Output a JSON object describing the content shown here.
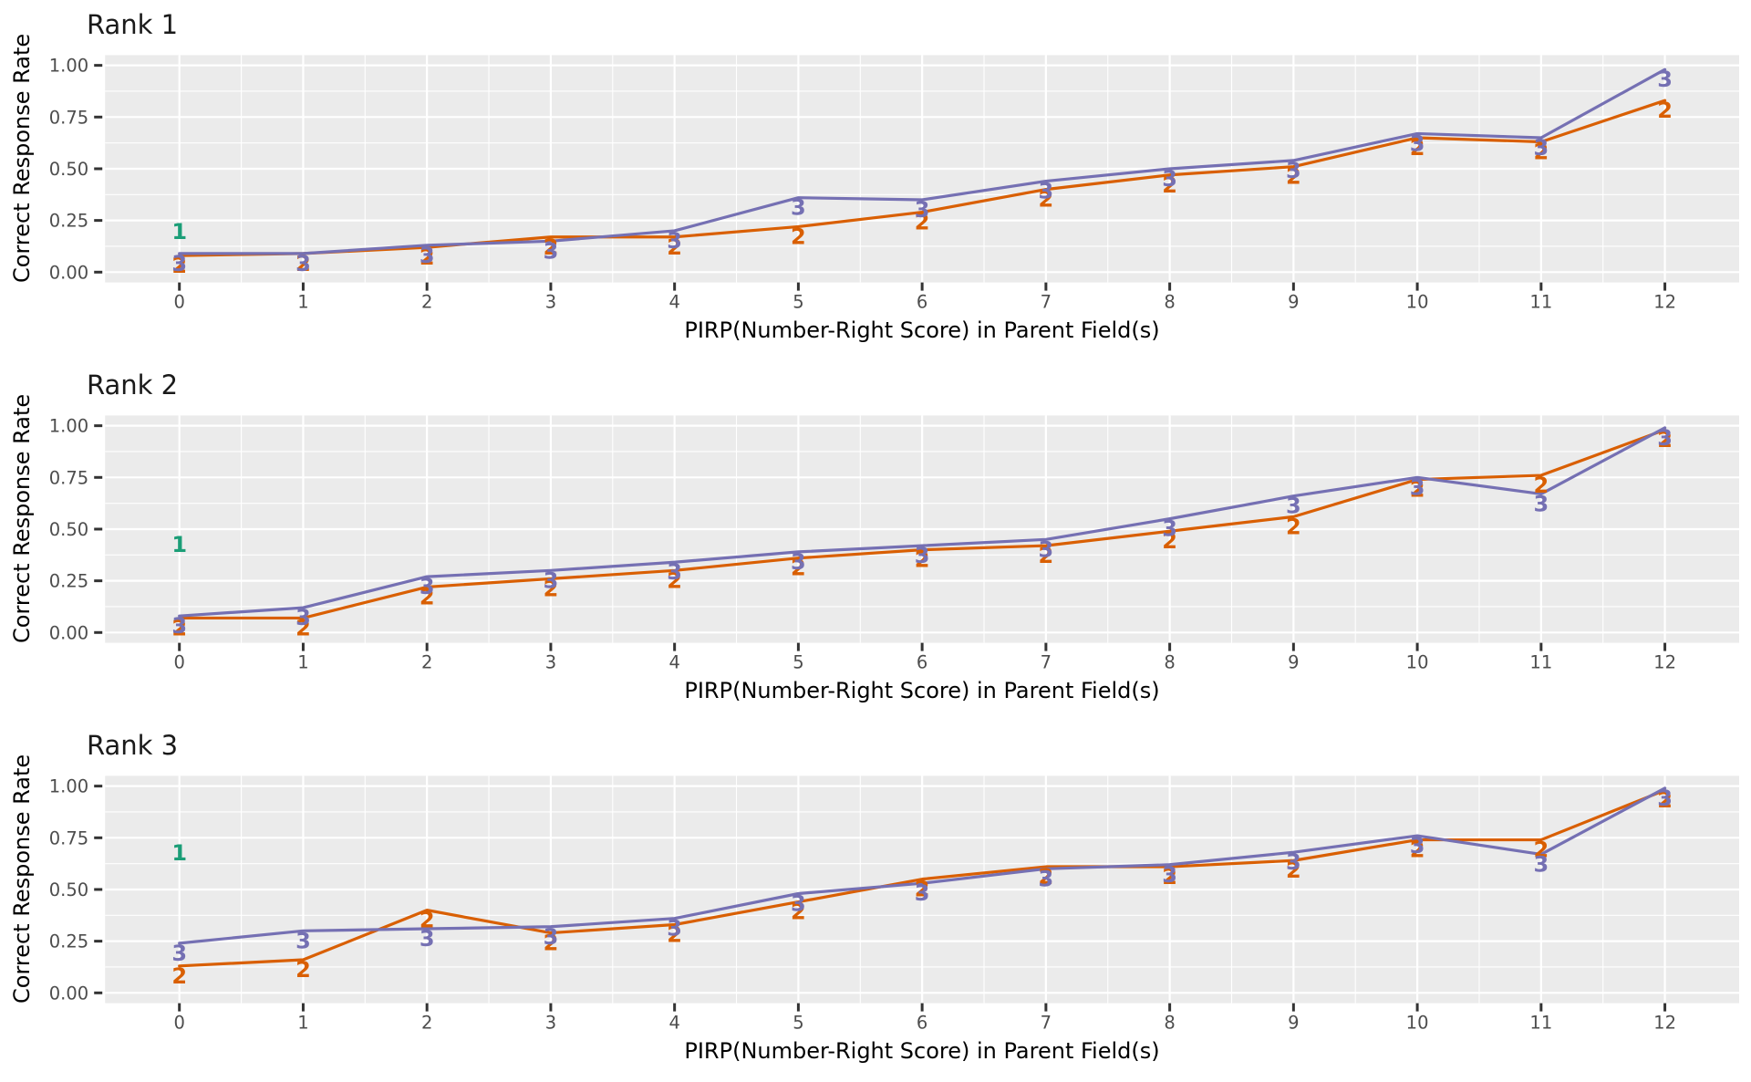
{
  "figure": {
    "background": "#ffffff",
    "panel_background": "#ebebeb",
    "grid_color": "#ffffff",
    "tick_mark_color": "#333333",
    "tick_label_color": "#4d4d4d",
    "panel_title_color": "#1a1a1a",
    "axis_title_color": "#000000"
  },
  "series_colors": {
    "1": "#1b9e77",
    "2": "#d95f02",
    "3": "#7570b3"
  },
  "axes": {
    "x_title": "PIRP(Number-Right Score) in Parent Field(s)",
    "y_title": "Correct Response Rate",
    "x_tick_labels": [
      "0",
      "1",
      "2",
      "3",
      "4",
      "5",
      "6",
      "7",
      "8",
      "9",
      "10",
      "11",
      "12"
    ],
    "y_tick_labels": [
      "1.00",
      "0.75",
      "0.50",
      "0.25",
      "0.00"
    ],
    "y_tick_values": [
      1.0,
      0.75,
      0.5,
      0.25,
      0.0
    ]
  },
  "chart_data": [
    {
      "type": "line",
      "title": "Rank 1",
      "xlabel": "PIRP(Number-Right Score) in Parent Field(s)",
      "ylabel": "Correct Response Rate",
      "xlim": [
        0,
        12
      ],
      "ylim": [
        0.0,
        1.0
      ],
      "grid": "on",
      "x": [
        0,
        1,
        2,
        3,
        4,
        5,
        6,
        7,
        8,
        9,
        10,
        11,
        12
      ],
      "series": [
        {
          "name": "2",
          "color": "#d95f02",
          "values": [
            0.08,
            0.09,
            0.12,
            0.17,
            0.17,
            0.22,
            0.29,
            0.4,
            0.47,
            0.51,
            0.65,
            0.63,
            0.83
          ]
        },
        {
          "name": "3",
          "color": "#7570b3",
          "values": [
            0.09,
            0.09,
            0.13,
            0.15,
            0.2,
            0.36,
            0.35,
            0.44,
            0.5,
            0.54,
            0.67,
            0.65,
            0.98
          ]
        },
        {
          "name": "1",
          "color": "#1b9e77",
          "label_only": true,
          "x": [
            0
          ],
          "values": [
            0.2
          ]
        }
      ]
    },
    {
      "type": "line",
      "title": "Rank 2",
      "xlabel": "PIRP(Number-Right Score) in Parent Field(s)",
      "ylabel": "Correct Response Rate",
      "xlim": [
        0,
        12
      ],
      "ylim": [
        0.0,
        1.0
      ],
      "grid": "on",
      "x": [
        0,
        1,
        2,
        3,
        4,
        5,
        6,
        7,
        8,
        9,
        10,
        11,
        12
      ],
      "series": [
        {
          "name": "2",
          "color": "#d95f02",
          "values": [
            0.07,
            0.07,
            0.22,
            0.26,
            0.3,
            0.36,
            0.4,
            0.42,
            0.49,
            0.56,
            0.74,
            0.76,
            0.98
          ]
        },
        {
          "name": "3",
          "color": "#7570b3",
          "values": [
            0.08,
            0.12,
            0.27,
            0.3,
            0.34,
            0.39,
            0.42,
            0.45,
            0.55,
            0.66,
            0.75,
            0.67,
            0.99
          ]
        },
        {
          "name": "1",
          "color": "#1b9e77",
          "label_only": true,
          "x": [
            0
          ],
          "values": [
            0.43
          ]
        }
      ]
    },
    {
      "type": "line",
      "title": "Rank 3",
      "xlabel": "PIRP(Number-Right Score) in Parent Field(s)",
      "ylabel": "Correct Response Rate",
      "xlim": [
        0,
        12
      ],
      "ylim": [
        0.0,
        1.0
      ],
      "grid": "on",
      "x": [
        0,
        1,
        2,
        3,
        4,
        5,
        6,
        7,
        8,
        9,
        10,
        11,
        12
      ],
      "series": [
        {
          "name": "2",
          "color": "#d95f02",
          "values": [
            0.13,
            0.16,
            0.4,
            0.29,
            0.33,
            0.44,
            0.55,
            0.61,
            0.61,
            0.64,
            0.74,
            0.74,
            0.98
          ]
        },
        {
          "name": "3",
          "color": "#7570b3",
          "values": [
            0.24,
            0.3,
            0.31,
            0.32,
            0.36,
            0.48,
            0.53,
            0.6,
            0.62,
            0.68,
            0.76,
            0.67,
            0.99
          ]
        },
        {
          "name": "1",
          "color": "#1b9e77",
          "label_only": true,
          "x": [
            0
          ],
          "values": [
            0.68
          ]
        }
      ]
    }
  ]
}
